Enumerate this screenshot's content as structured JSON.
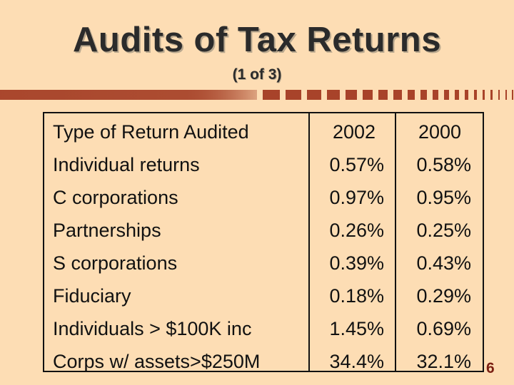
{
  "title": "Audits of Tax Returns",
  "subtitle": "(1 of 3)",
  "page_number": "6",
  "colors": {
    "background": "#FDDDB4",
    "accent": "#A8432A",
    "text": "#111111"
  },
  "table": {
    "headers": {
      "type": "Type of Return Audited",
      "col1": "2002",
      "col2": "2000"
    },
    "rows": [
      {
        "type": "Individual returns",
        "y2002": "0.57%",
        "y2000": "0.58%"
      },
      {
        "type": "C corporations",
        "y2002": "0.97%",
        "y2000": "0.95%"
      },
      {
        "type": "Partnerships",
        "y2002": "0.26%",
        "y2000": "0.25%"
      },
      {
        "type": "S corporations",
        "y2002": "0.39%",
        "y2000": "0.43%"
      },
      {
        "type": "Fiduciary",
        "y2002": "0.18%",
        "y2000": "0.29%"
      },
      {
        "type": "Individuals > $100K inc",
        "y2002": "1.45%",
        "y2000": "0.69%"
      },
      {
        "type": "Corps w/ assets>$250M",
        "y2002": "34.4%",
        "y2000": "32.1%"
      }
    ]
  }
}
